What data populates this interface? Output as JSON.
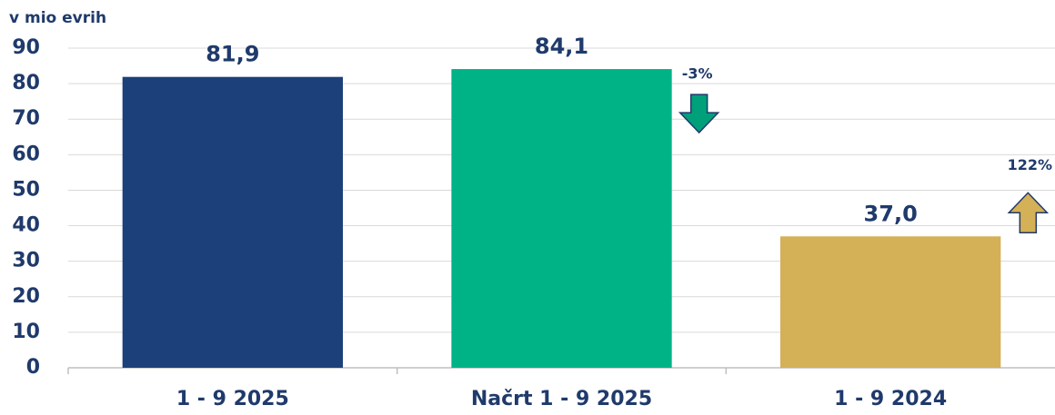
{
  "chart_data": {
    "type": "bar",
    "y_label": "v mio evrih",
    "categories": [
      "1 - 9 2025",
      "Načrt 1 - 9 2025",
      "1 - 9 2024"
    ],
    "values": [
      81.9,
      84.1,
      37.0
    ],
    "value_labels": [
      "81,9",
      "84,1",
      "37,0"
    ],
    "colors": [
      "#1c4079",
      "#00b386",
      "#d4b056"
    ],
    "ylim": [
      0,
      90
    ],
    "yticks": [
      0,
      10,
      20,
      30,
      40,
      50,
      60,
      70,
      80,
      90
    ],
    "grid": true,
    "annotations": [
      {
        "text": "-3%",
        "color": "#00a07a",
        "direction": "down"
      },
      {
        "text": "122%",
        "color": "#d4b056",
        "direction": "up"
      }
    ]
  }
}
